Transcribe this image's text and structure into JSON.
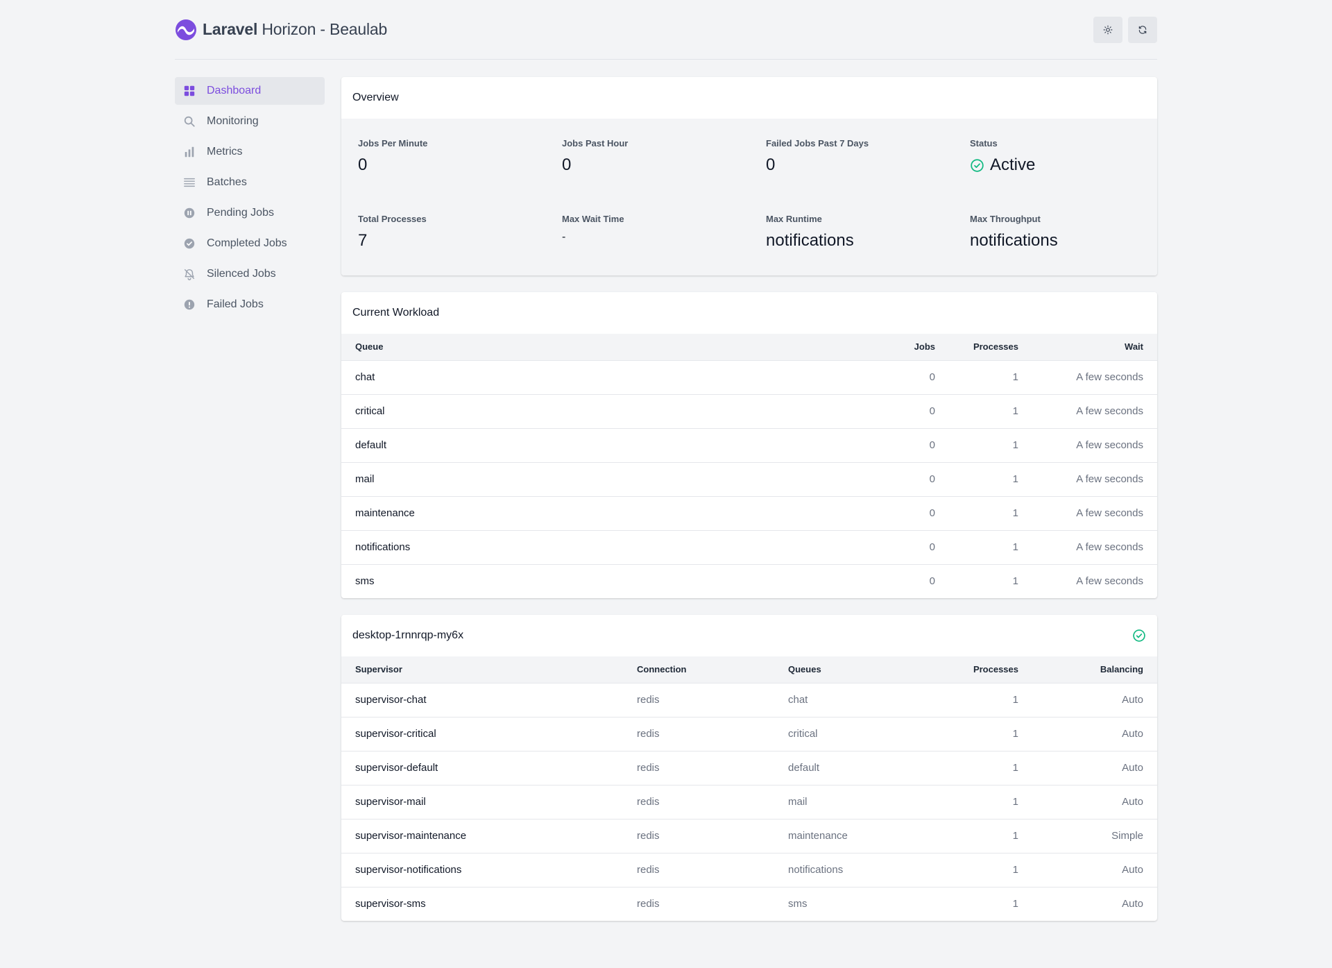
{
  "app": {
    "title_bold": "Laravel",
    "title_rest": "Horizon - Beaulab"
  },
  "header": {
    "theme_icon": "sun-icon",
    "refresh_icon": "refresh-icon"
  },
  "sidebar": {
    "items": [
      {
        "label": "Dashboard",
        "icon": "dashboard-icon"
      },
      {
        "label": "Monitoring",
        "icon": "search-icon"
      },
      {
        "label": "Metrics",
        "icon": "bar-chart-icon"
      },
      {
        "label": "Batches",
        "icon": "list-icon"
      },
      {
        "label": "Pending Jobs",
        "icon": "pause-circle-icon"
      },
      {
        "label": "Completed Jobs",
        "icon": "check-circle-icon"
      },
      {
        "label": "Silenced Jobs",
        "icon": "bell-slash-icon"
      },
      {
        "label": "Failed Jobs",
        "icon": "exclamation-circle-icon"
      }
    ]
  },
  "overview": {
    "title": "Overview",
    "jobs_per_minute": {
      "label": "Jobs Per Minute",
      "value": "0"
    },
    "jobs_past_hour": {
      "label": "Jobs Past Hour",
      "value": "0"
    },
    "failed_jobs": {
      "label": "Failed Jobs Past 7 Days",
      "value": "0"
    },
    "status": {
      "label": "Status",
      "value": "Active",
      "color": "#10b981"
    },
    "total_processes": {
      "label": "Total Processes",
      "value": "7"
    },
    "max_wait_time": {
      "label": "Max Wait Time",
      "value": "-"
    },
    "max_runtime": {
      "label": "Max Runtime",
      "value": "notifications"
    },
    "max_throughput": {
      "label": "Max Throughput",
      "value": "notifications"
    }
  },
  "workload": {
    "title": "Current Workload",
    "headers": {
      "queue": "Queue",
      "jobs": "Jobs",
      "processes": "Processes",
      "wait": "Wait"
    },
    "rows": [
      {
        "queue": "chat",
        "jobs": "0",
        "processes": "1",
        "wait": "A few seconds"
      },
      {
        "queue": "critical",
        "jobs": "0",
        "processes": "1",
        "wait": "A few seconds"
      },
      {
        "queue": "default",
        "jobs": "0",
        "processes": "1",
        "wait": "A few seconds"
      },
      {
        "queue": "mail",
        "jobs": "0",
        "processes": "1",
        "wait": "A few seconds"
      },
      {
        "queue": "maintenance",
        "jobs": "0",
        "processes": "1",
        "wait": "A few seconds"
      },
      {
        "queue": "notifications",
        "jobs": "0",
        "processes": "1",
        "wait": "A few seconds"
      },
      {
        "queue": "sms",
        "jobs": "0",
        "processes": "1",
        "wait": "A few seconds"
      }
    ]
  },
  "supervisors": {
    "title": "desktop-1rnnrqp-my6x",
    "headers": {
      "supervisor": "Supervisor",
      "connection": "Connection",
      "queues": "Queues",
      "processes": "Processes",
      "balancing": "Balancing"
    },
    "rows": [
      {
        "supervisor": "supervisor-chat",
        "connection": "redis",
        "queues": "chat",
        "processes": "1",
        "balancing": "Auto"
      },
      {
        "supervisor": "supervisor-critical",
        "connection": "redis",
        "queues": "critical",
        "processes": "1",
        "balancing": "Auto"
      },
      {
        "supervisor": "supervisor-default",
        "connection": "redis",
        "queues": "default",
        "processes": "1",
        "balancing": "Auto"
      },
      {
        "supervisor": "supervisor-mail",
        "connection": "redis",
        "queues": "mail",
        "processes": "1",
        "balancing": "Auto"
      },
      {
        "supervisor": "supervisor-maintenance",
        "connection": "redis",
        "queues": "maintenance",
        "processes": "1",
        "balancing": "Simple"
      },
      {
        "supervisor": "supervisor-notifications",
        "connection": "redis",
        "queues": "notifications",
        "processes": "1",
        "balancing": "Auto"
      },
      {
        "supervisor": "supervisor-sms",
        "connection": "redis",
        "queues": "sms",
        "processes": "1",
        "balancing": "Auto"
      }
    ]
  },
  "colors": {
    "accent": "#7c4dde",
    "success": "#10b981"
  }
}
